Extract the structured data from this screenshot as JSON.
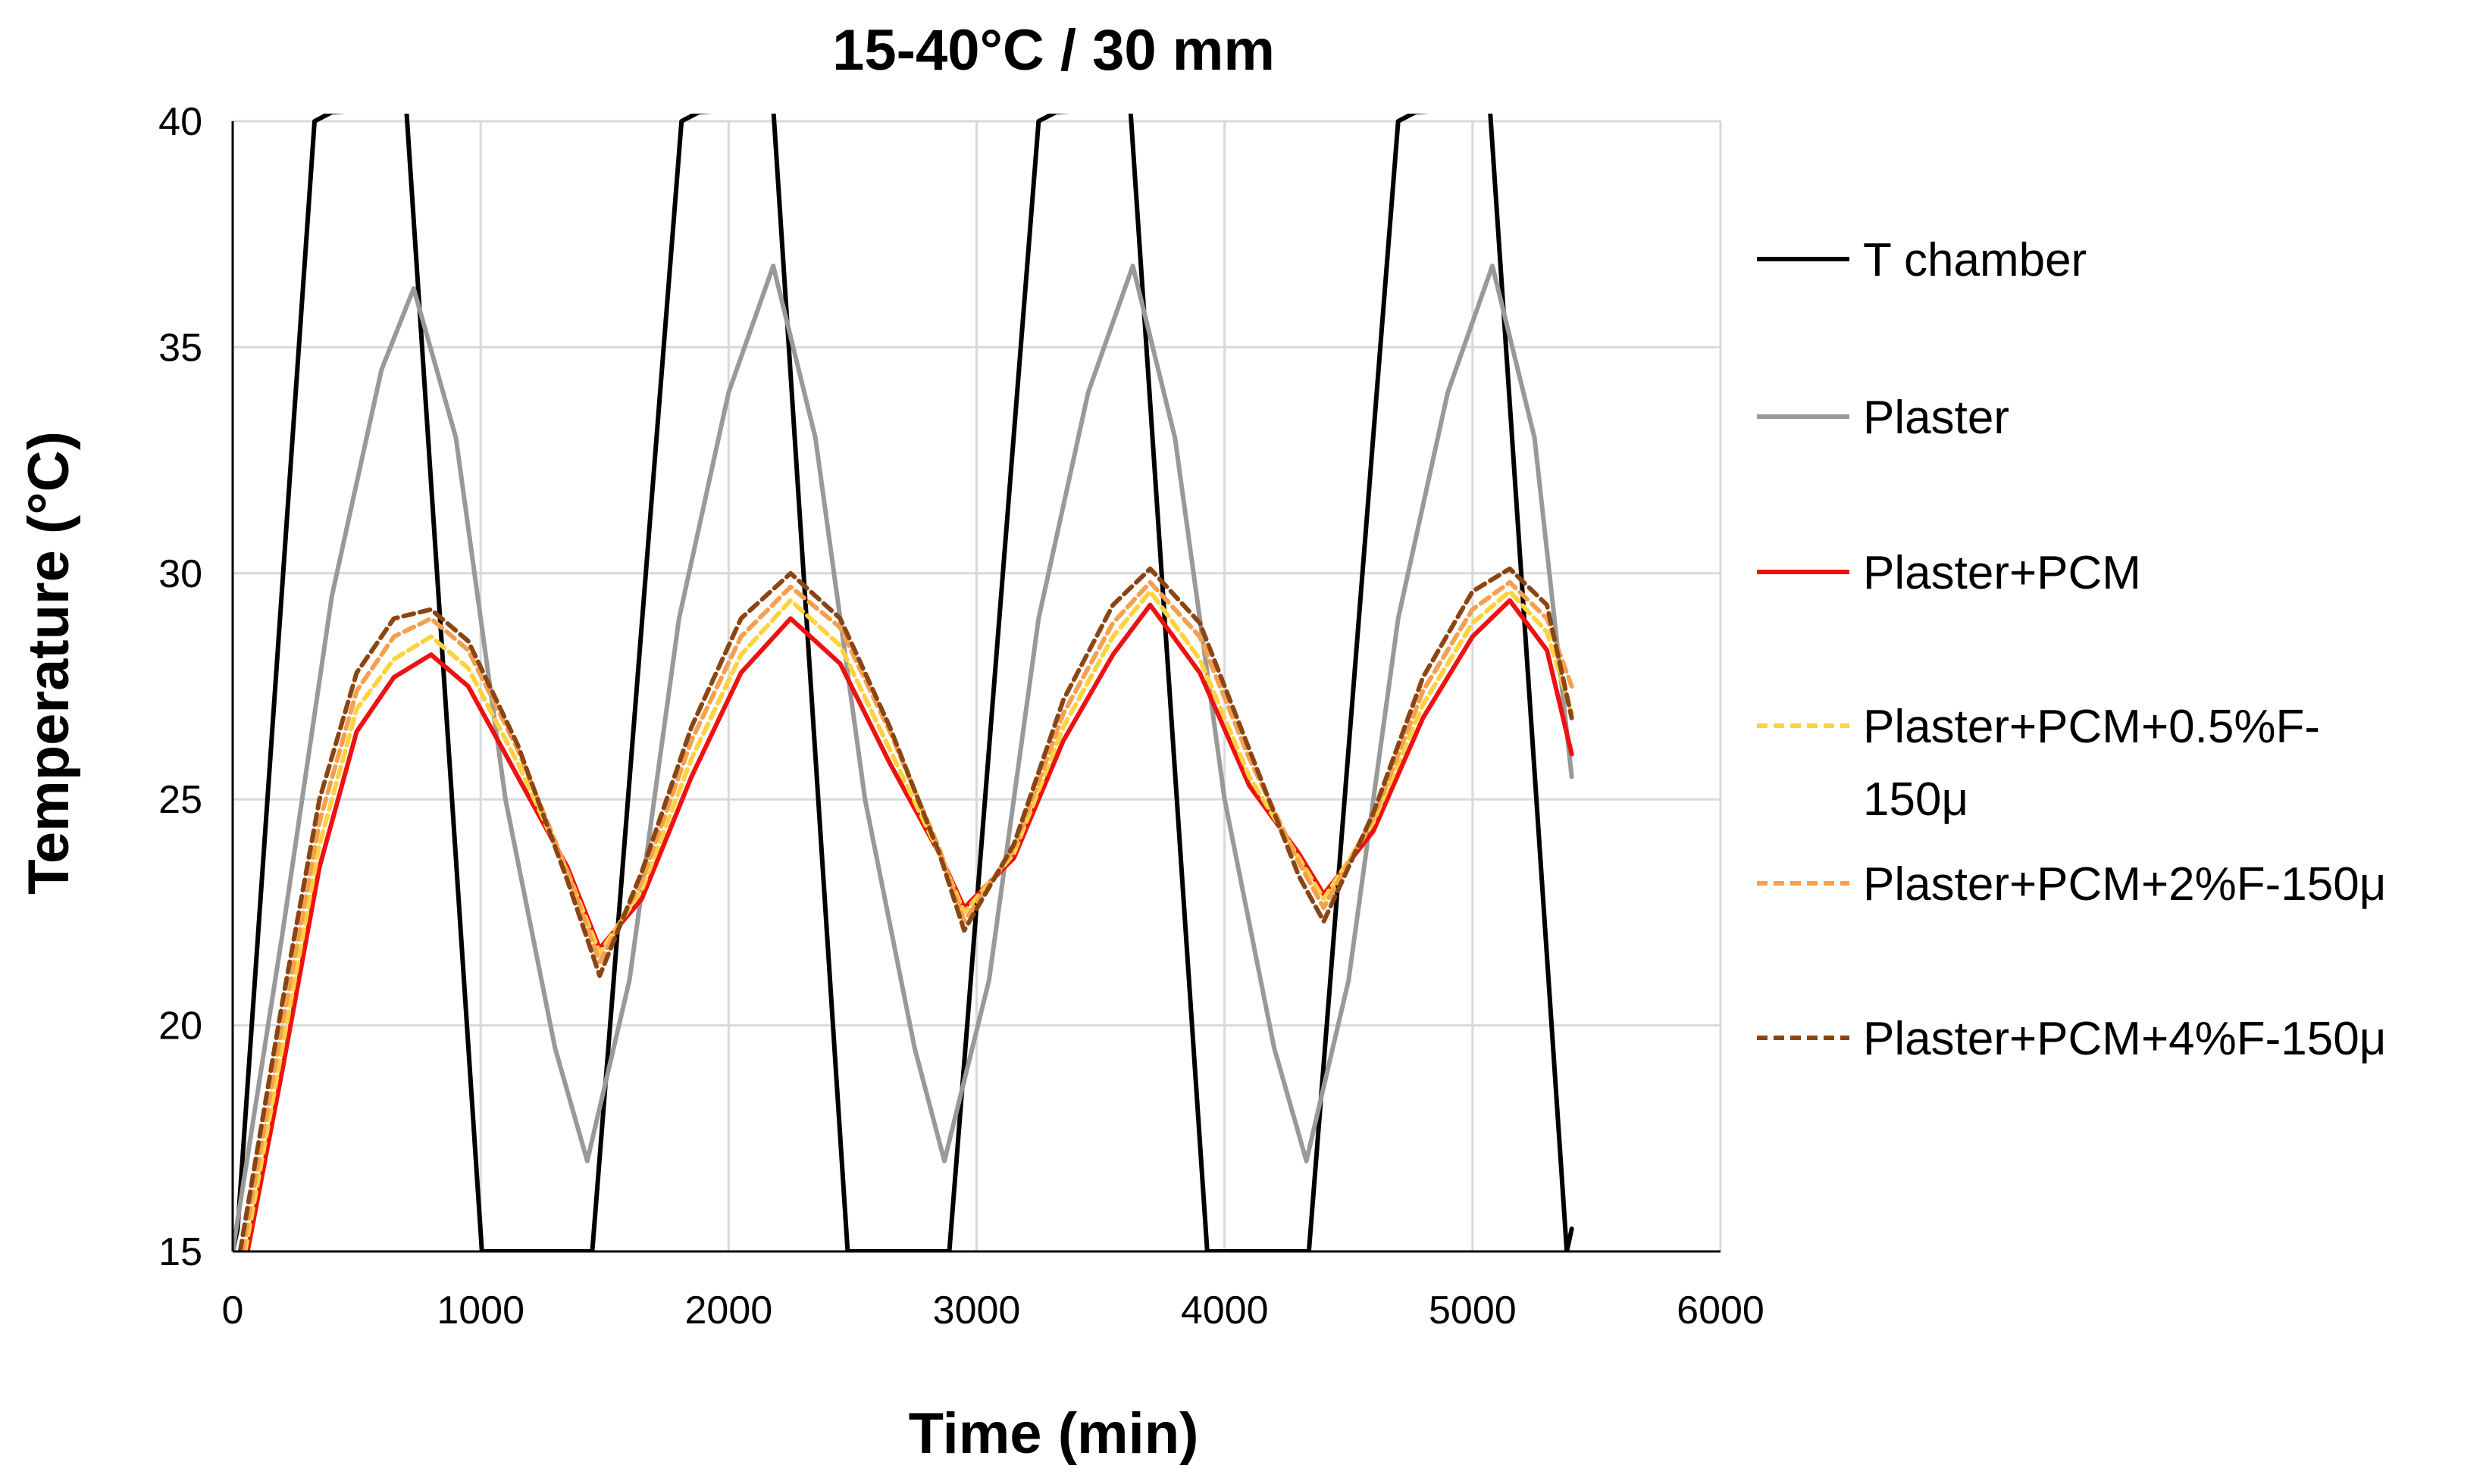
{
  "chart_data": {
    "type": "line",
    "title": "15-40°C / 30 mm",
    "xlabel": "Time (min)",
    "ylabel": "Temperature (°C)",
    "xlim": [
      0,
      6000
    ],
    "ylim": [
      15,
      40
    ],
    "xticks": [
      "0",
      "1000",
      "2000",
      "3000",
      "4000",
      "5000",
      "6000"
    ],
    "yticks": [
      "15",
      "20",
      "25",
      "30",
      "35",
      "40"
    ],
    "xtick_values": [
      0,
      1000,
      2000,
      3000,
      4000,
      5000,
      6000
    ],
    "ytick_values": [
      15,
      20,
      25,
      30,
      35,
      40
    ],
    "grid": true,
    "legend_position": "right",
    "series": [
      {
        "name": "T chamber",
        "legend_lines": [
          "T chamber"
        ],
        "color": "#000000",
        "dashed": false,
        "x": [
          0,
          20,
          330,
          400,
          700,
          1005,
          1450,
          1810,
          1880,
          2180,
          2480,
          2890,
          3250,
          3320,
          3620,
          3930,
          4340,
          4700,
          4770,
          5070,
          5380,
          5400
        ],
        "y": [
          15,
          15.5,
          40.0,
          40.2,
          40.3,
          15.0,
          15.0,
          40.0,
          40.2,
          40.3,
          15.0,
          15.0,
          40.0,
          40.2,
          40.3,
          15.0,
          15.0,
          40.0,
          40.2,
          40.3,
          15.0,
          15.5
        ]
      },
      {
        "name": "Plaster",
        "legend_lines": [
          "Plaster"
        ],
        "color": "#999999",
        "dashed": false,
        "x": [
          0,
          200,
          400,
          600,
          730,
          900,
          1100,
          1300,
          1430,
          1600,
          1800,
          2000,
          2180,
          2350,
          2550,
          2750,
          2870,
          3050,
          3250,
          3450,
          3630,
          3800,
          4000,
          4200,
          4330,
          4500,
          4700,
          4900,
          5080,
          5250,
          5400
        ],
        "y": [
          15,
          22,
          29.5,
          34.5,
          36.3,
          33,
          25,
          19.5,
          17.0,
          21,
          29,
          34,
          36.8,
          33,
          25,
          19.5,
          17.0,
          21,
          29,
          34,
          36.8,
          33,
          25,
          19.5,
          17.0,
          21,
          29,
          34,
          36.8,
          33,
          25.5
        ]
      },
      {
        "name": "Plaster+PCM",
        "legend_lines": [
          "Plaster+PCM"
        ],
        "color": "#ee1111",
        "dashed": false,
        "x": [
          60,
          200,
          350,
          500,
          650,
          800,
          950,
          1150,
          1350,
          1480,
          1650,
          1850,
          2050,
          2250,
          2450,
          2650,
          2850,
          2950,
          3150,
          3350,
          3550,
          3700,
          3900,
          4100,
          4300,
          4400,
          4600,
          4800,
          5000,
          5150,
          5300,
          5400
        ],
        "y": [
          15,
          19,
          23.5,
          26.5,
          27.7,
          28.2,
          27.5,
          25.5,
          23.5,
          21.7,
          22.8,
          25.5,
          27.8,
          29.0,
          28.0,
          25.8,
          23.8,
          22.6,
          23.7,
          26.3,
          28.2,
          29.3,
          27.8,
          25.3,
          23.8,
          22.9,
          24.3,
          26.8,
          28.6,
          29.4,
          28.3,
          26.0
        ]
      },
      {
        "name": "Plaster+PCM+0.5%F-150μ",
        "legend_lines": [
          "Plaster+PCM+0.5%F-",
          "150μ"
        ],
        "color": "#ffd23f",
        "dashed": true,
        "x": [
          50,
          200,
          350,
          500,
          650,
          800,
          950,
          1150,
          1350,
          1480,
          1650,
          1850,
          2050,
          2250,
          2450,
          2650,
          2850,
          2950,
          3150,
          3350,
          3550,
          3700,
          3900,
          4100,
          4300,
          4400,
          4600,
          4800,
          5000,
          5150,
          5300,
          5400
        ],
        "y": [
          15,
          19.5,
          24,
          27,
          28.1,
          28.6,
          27.9,
          25.8,
          23.4,
          21.6,
          23,
          25.9,
          28.2,
          29.4,
          28.4,
          26.1,
          23.8,
          22.5,
          23.8,
          26.6,
          28.6,
          29.6,
          28.1,
          25.5,
          23.7,
          22.8,
          24.5,
          27.1,
          28.9,
          29.6,
          28.7,
          26.9
        ]
      },
      {
        "name": "Plaster+PCM+2%F-150μ",
        "legend_lines": [
          "Plaster+PCM+2%F-150μ"
        ],
        "color": "#f5a050",
        "dashed": true,
        "x": [
          40,
          200,
          350,
          500,
          650,
          800,
          950,
          1150,
          1350,
          1480,
          1650,
          1850,
          2050,
          2250,
          2450,
          2650,
          2850,
          2950,
          3150,
          3350,
          3550,
          3700,
          3900,
          4100,
          4300,
          4400,
          4600,
          4800,
          5000,
          5150,
          5300,
          5400
        ],
        "y": [
          15,
          20,
          24.5,
          27.4,
          28.6,
          29.0,
          28.3,
          26.1,
          23.4,
          21.4,
          23.2,
          26.3,
          28.6,
          29.7,
          28.8,
          26.5,
          23.9,
          22.3,
          23.9,
          26.9,
          28.9,
          29.8,
          28.6,
          25.9,
          23.6,
          22.6,
          24.6,
          27.4,
          29.2,
          29.8,
          29.0,
          27.5
        ]
      },
      {
        "name": "Plaster+PCM+4%F-150μ",
        "legend_lines": [
          "Plaster+PCM+4%F-150μ"
        ],
        "color": "#8b4513",
        "dashed": true,
        "x": [
          30,
          200,
          350,
          500,
          650,
          800,
          950,
          1150,
          1350,
          1480,
          1650,
          1850,
          2050,
          2250,
          2450,
          2650,
          2850,
          2950,
          3150,
          3350,
          3550,
          3700,
          3900,
          4100,
          4300,
          4400,
          4600,
          4800,
          5000,
          5150,
          5300,
          5400
        ],
        "y": [
          15,
          20.5,
          25,
          27.8,
          29.0,
          29.2,
          28.5,
          26.2,
          23.2,
          21.1,
          23.4,
          26.6,
          29.0,
          30.0,
          29.0,
          26.6,
          23.8,
          22.1,
          24.0,
          27.2,
          29.3,
          30.1,
          28.9,
          26.1,
          23.3,
          22.3,
          24.7,
          27.7,
          29.6,
          30.1,
          29.3,
          26.8
        ]
      }
    ]
  }
}
